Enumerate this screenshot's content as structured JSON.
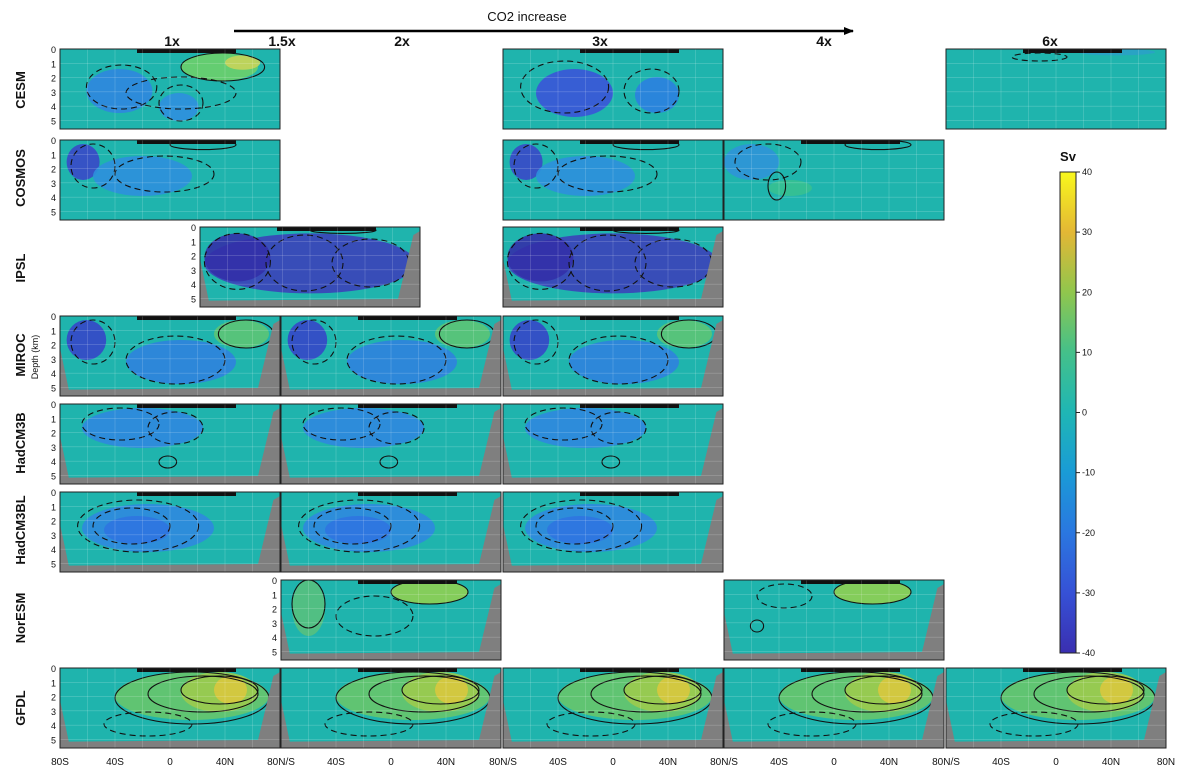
{
  "chart_data": {
    "type": "heatmap",
    "figure_title": "CO2 increase",
    "columns": [
      "1x",
      "1.5x",
      "2x",
      "3x",
      "4x",
      "6x"
    ],
    "rows": [
      "CESM",
      "COSMOS",
      "IPSL",
      "MIROC",
      "HadCM3B",
      "HadCM3BL",
      "NorESM",
      "GFDL"
    ],
    "ylabel": "Depth (km)",
    "y_ticks": [
      "0",
      "1",
      "2",
      "3",
      "4",
      "5"
    ],
    "x_ticks_first": [
      "80S",
      "40S",
      "0",
      "40N"
    ],
    "x_ticks_next": [
      "80N/S",
      "40S",
      "0",
      "40N"
    ],
    "x_tick_last": "80N",
    "colorbar": {
      "label": "Sv",
      "ticks": [
        "40",
        "30",
        "20",
        "10",
        "0",
        "-10",
        "-20",
        "-30",
        "-40"
      ],
      "range": [
        -40,
        40
      ]
    },
    "panels": [
      {
        "row": "CESM",
        "slot": 0,
        "pattern": "cesm"
      },
      {
        "row": "CESM",
        "slot": 2,
        "pattern": "cesm3"
      },
      {
        "row": "CESM",
        "slot": 4,
        "pattern": "flat"
      },
      {
        "row": "COSMOS",
        "slot": 0,
        "pattern": "cosmos"
      },
      {
        "row": "COSMOS",
        "slot": 2,
        "pattern": "cosmos"
      },
      {
        "row": "COSMOS",
        "slot": 3,
        "pattern": "cosmos4"
      },
      {
        "row": "IPSL",
        "slot": 1,
        "pattern": "ipsl"
      },
      {
        "row": "IPSL",
        "slot": 2,
        "pattern": "ipsl"
      },
      {
        "row": "MIROC",
        "slot": 0,
        "pattern": "miroc"
      },
      {
        "row": "MIROC",
        "slot": 1,
        "pattern": "miroc"
      },
      {
        "row": "MIROC",
        "slot": 2,
        "pattern": "miroc"
      },
      {
        "row": "HadCM3B",
        "slot": 0,
        "pattern": "had"
      },
      {
        "row": "HadCM3B",
        "slot": 1,
        "pattern": "had"
      },
      {
        "row": "HadCM3B",
        "slot": 2,
        "pattern": "had"
      },
      {
        "row": "HadCM3BL",
        "slot": 0,
        "pattern": "hadl"
      },
      {
        "row": "HadCM3BL",
        "slot": 1,
        "pattern": "hadl"
      },
      {
        "row": "HadCM3BL",
        "slot": 2,
        "pattern": "hadl"
      },
      {
        "row": "NorESM",
        "slot": 1,
        "pattern": "nor"
      },
      {
        "row": "NorESM",
        "slot": 3,
        "pattern": "nor4"
      },
      {
        "row": "GFDL",
        "slot": 0,
        "pattern": "gfdl"
      },
      {
        "row": "GFDL",
        "slot": 1,
        "pattern": "gfdl"
      },
      {
        "row": "GFDL",
        "slot": 2,
        "pattern": "gfdl"
      },
      {
        "row": "GFDL",
        "slot": 3,
        "pattern": "gfdl"
      },
      {
        "row": "GFDL",
        "slot": 4,
        "pattern": "gfdl"
      }
    ]
  }
}
